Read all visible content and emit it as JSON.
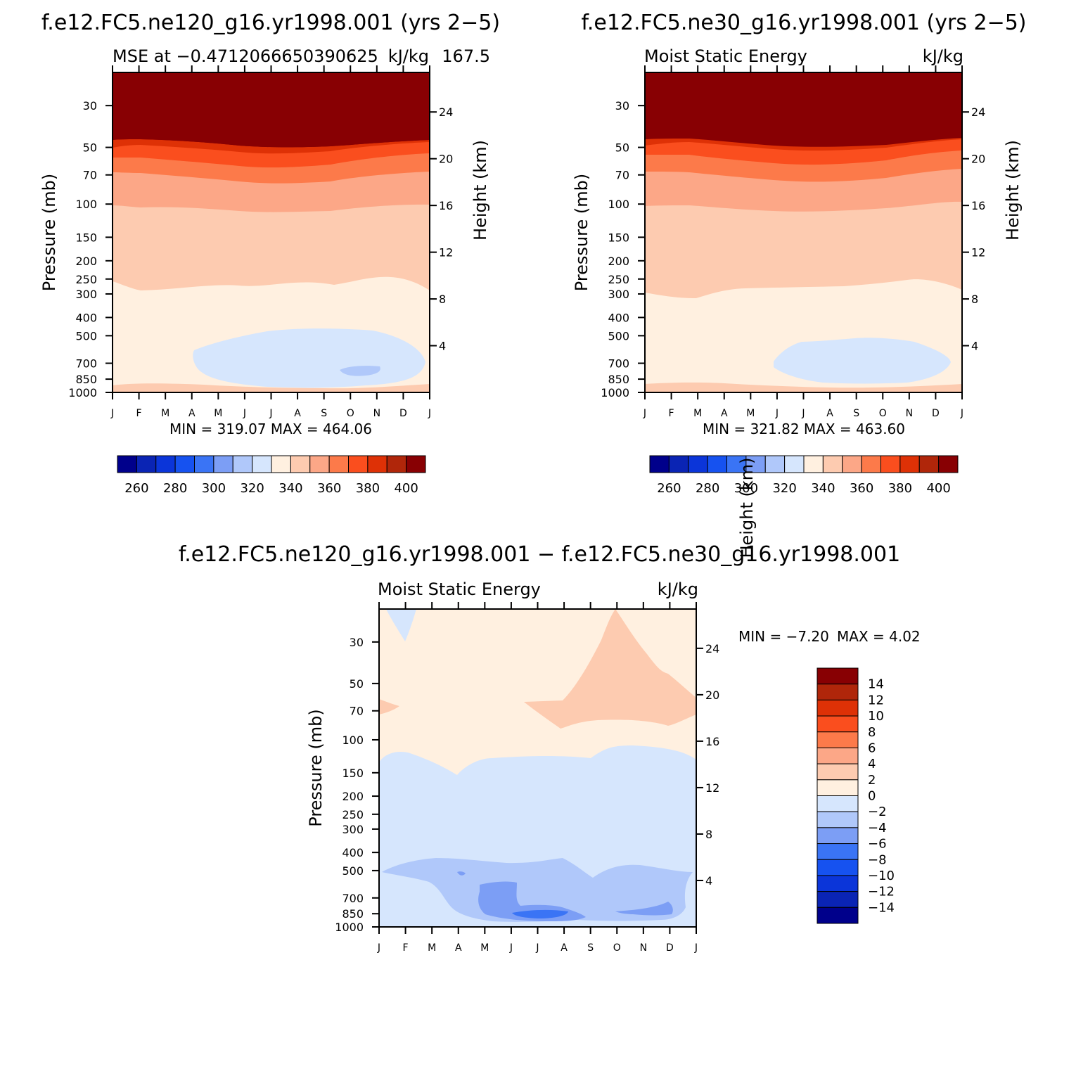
{
  "chart_data": [
    {
      "type": "heatmap",
      "title": "f.e12.FC5.ne120_g16.yr1998.001 (yrs 2−5)",
      "subtitle_left": "MSE at −0.4712066650390625",
      "subtitle_right": "kJ/kg",
      "subtitle_overlap": "167.5",
      "ylabel": "Pressure (mb)",
      "y2label": "Height (km)",
      "x_months": [
        "J",
        "F",
        "M",
        "A",
        "M",
        "J",
        "J",
        "A",
        "S",
        "O",
        "N",
        "D",
        "J"
      ],
      "y_pressure_ticks": [
        "30",
        "50",
        "70",
        "100",
        "150",
        "200",
        "250",
        "300",
        "400",
        "500",
        "700",
        "850",
        "1000"
      ],
      "y_height_ticks": [
        "24",
        "20",
        "16",
        "12",
        "8",
        "4"
      ],
      "stats": "MIN = 319.07 MAX = 464.06",
      "colorbar_labels": [
        "260",
        "280",
        "300",
        "320",
        "340",
        "360",
        "380",
        "400"
      ],
      "levels": [
        250,
        260,
        270,
        280,
        290,
        300,
        310,
        320,
        330,
        340,
        350,
        360,
        370,
        380,
        390,
        400
      ],
      "min": 319.07,
      "max": 464.06
    },
    {
      "type": "heatmap",
      "title": "f.e12.FC5.ne30_g16.yr1998.001 (yrs 2−5)",
      "subtitle_left": "Moist Static Energy",
      "subtitle_right": "kJ/kg",
      "ylabel": "Pressure (mb)",
      "y2label": "Height (km)",
      "x_months": [
        "J",
        "F",
        "M",
        "A",
        "M",
        "J",
        "J",
        "A",
        "S",
        "O",
        "N",
        "D",
        "J"
      ],
      "y_pressure_ticks": [
        "30",
        "50",
        "70",
        "100",
        "150",
        "200",
        "250",
        "300",
        "400",
        "500",
        "700",
        "850",
        "1000"
      ],
      "y_height_ticks": [
        "24",
        "20",
        "16",
        "12",
        "8",
        "4"
      ],
      "stats": "MIN = 321.82 MAX = 463.60",
      "colorbar_labels": [
        "260",
        "280",
        "300",
        "320",
        "340",
        "360",
        "380",
        "400"
      ],
      "levels": [
        250,
        260,
        270,
        280,
        290,
        300,
        310,
        320,
        330,
        340,
        350,
        360,
        370,
        380,
        390,
        400
      ],
      "min": 321.82,
      "max": 463.6
    },
    {
      "type": "heatmap",
      "title": "f.e12.FC5.ne120_g16.yr1998.001 − f.e12.FC5.ne30_g16.yr1998.001",
      "subtitle_left": "Moist Static Energy",
      "subtitle_right": "kJ/kg",
      "ylabel": "Pressure (mb)",
      "y2label": "Height (km)",
      "x_months": [
        "J",
        "F",
        "M",
        "A",
        "M",
        "J",
        "J",
        "A",
        "S",
        "O",
        "N",
        "D",
        "J"
      ],
      "y_pressure_ticks": [
        "30",
        "50",
        "70",
        "100",
        "150",
        "200",
        "250",
        "300",
        "400",
        "500",
        "700",
        "850",
        "1000"
      ],
      "y_height_ticks": [
        "24",
        "20",
        "16",
        "12",
        "8",
        "4"
      ],
      "stats_min": "MIN =   −7.20",
      "stats_max": "MAX =     4.02",
      "colorbar_labels": [
        "14",
        "12",
        "10",
        "8",
        "6",
        "4",
        "2",
        "0",
        "−2",
        "−4",
        "−6",
        "−8",
        "−10",
        "−12",
        "−14"
      ],
      "levels": [
        -14,
        -12,
        -10,
        -8,
        -6,
        -4,
        -2,
        0,
        2,
        4,
        6,
        8,
        10,
        12,
        14
      ],
      "min": -7.2,
      "max": 4.02
    }
  ],
  "palette": [
    "#00008b",
    "#0a24b4",
    "#0b35d9",
    "#1652f0",
    "#3a74f5",
    "#7c9ef5",
    "#b0c8fa",
    "#d6e6fd",
    "#fff0e0",
    "#fdcbb0",
    "#fca787",
    "#fc7a4a",
    "#fa4e1e",
    "#de3106",
    "#b0260a",
    "#880003"
  ]
}
